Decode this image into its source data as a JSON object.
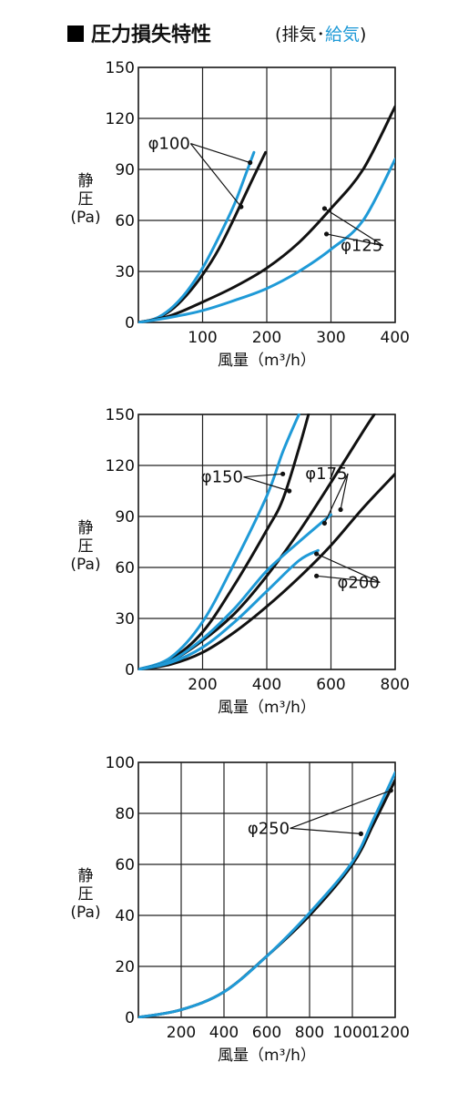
{
  "header": {
    "title": "圧力損失特性",
    "paren_open": "(",
    "exhaust": "排気",
    "separator": "･",
    "supply": "給気",
    "paren_close": ")"
  },
  "colors": {
    "exhaust": "#111111",
    "supply": "#1f9ad7",
    "grid": "#222222"
  },
  "chart_data": [
    {
      "type": "line",
      "xlabel": "風量（m³/h）",
      "ylabel": "静圧(Pa)",
      "xlim": [
        0,
        400
      ],
      "ylim": [
        0,
        150
      ],
      "xticks": [
        "100",
        "200",
        "300",
        "400"
      ],
      "yticks": [
        "0",
        "30",
        "60",
        "90",
        "120",
        "150"
      ],
      "series": [
        {
          "kind": "exhaust",
          "values": [
            [
              0,
              0
            ],
            [
              25,
              2
            ],
            [
              50,
              7
            ],
            [
              75,
              16
            ],
            [
              100,
              28
            ],
            [
              125,
              43
            ],
            [
              150,
              62
            ],
            [
              175,
              82
            ],
            [
              198,
              100
            ]
          ]
        },
        {
          "kind": "supply",
          "values": [
            [
              0,
              0
            ],
            [
              25,
              2
            ],
            [
              50,
              8
            ],
            [
              75,
              18
            ],
            [
              100,
              32
            ],
            [
              125,
              50
            ],
            [
              150,
              70
            ],
            [
              170,
              90
            ],
            [
              180,
              100
            ]
          ]
        },
        {
          "kind": "exhaust",
          "values": [
            [
              0,
              0
            ],
            [
              50,
              4
            ],
            [
              100,
              12
            ],
            [
              150,
              21
            ],
            [
              200,
              32
            ],
            [
              250,
              47
            ],
            [
              300,
              67
            ],
            [
              350,
              90
            ],
            [
              400,
              127
            ]
          ]
        },
        {
          "kind": "supply",
          "values": [
            [
              0,
              0
            ],
            [
              50,
              3
            ],
            [
              100,
              7
            ],
            [
              150,
              13
            ],
            [
              200,
              20
            ],
            [
              250,
              30
            ],
            [
              300,
              43
            ],
            [
              350,
              60
            ],
            [
              400,
              96
            ]
          ]
        }
      ],
      "annotations": [
        {
          "label": "φ100",
          "text_at": [
            15,
            102
          ],
          "targets": [
            [
              174,
              94
            ],
            [
              160,
              68
            ]
          ]
        },
        {
          "label": "φ125",
          "text_at": [
            315,
            42
          ],
          "targets": [
            [
              290,
              67
            ],
            [
              293,
              52
            ]
          ]
        }
      ]
    },
    {
      "type": "line",
      "xlabel": "風量（m³/h）",
      "ylabel": "静圧(Pa)",
      "xlim": [
        0,
        800
      ],
      "ylim": [
        0,
        150
      ],
      "xticks": [
        "200",
        "400",
        "600",
        "800"
      ],
      "yticks": [
        "0",
        "30",
        "60",
        "90",
        "120",
        "150"
      ],
      "series": [
        {
          "kind": "exhaust",
          "values": [
            [
              0,
              0
            ],
            [
              100,
              6
            ],
            [
              200,
              22
            ],
            [
              300,
              50
            ],
            [
              400,
              82
            ],
            [
              450,
              100
            ],
            [
              500,
              130
            ],
            [
              530,
              150
            ]
          ]
        },
        {
          "kind": "supply",
          "values": [
            [
              0,
              0
            ],
            [
              100,
              7
            ],
            [
              200,
              28
            ],
            [
              300,
              63
            ],
            [
              400,
              102
            ],
            [
              450,
              128
            ],
            [
              500,
              150
            ]
          ]
        },
        {
          "kind": "exhaust",
          "values": [
            [
              0,
              0
            ],
            [
              100,
              5
            ],
            [
              200,
              17
            ],
            [
              300,
              33
            ],
            [
              400,
              55
            ],
            [
              500,
              81
            ],
            [
              600,
              110
            ],
            [
              700,
              140
            ],
            [
              735,
              150
            ]
          ]
        },
        {
          "kind": "supply",
          "values": [
            [
              0,
              0
            ],
            [
              100,
              5
            ],
            [
              200,
              18
            ],
            [
              300,
              36
            ],
            [
              400,
              58
            ],
            [
              500,
              75
            ],
            [
              600,
              91
            ]
          ]
        },
        {
          "kind": "exhaust",
          "values": [
            [
              0,
              0
            ],
            [
              100,
              3
            ],
            [
              200,
              10
            ],
            [
              300,
              22
            ],
            [
              400,
              37
            ],
            [
              500,
              54
            ],
            [
              600,
              73
            ],
            [
              700,
              95
            ],
            [
              800,
              115
            ]
          ]
        },
        {
          "kind": "supply",
          "values": [
            [
              0,
              0
            ],
            [
              100,
              4
            ],
            [
              200,
              13
            ],
            [
              300,
              28
            ],
            [
              400,
              46
            ],
            [
              500,
              64
            ],
            [
              560,
              70
            ]
          ]
        }
      ],
      "annotations": [
        {
          "label": "φ150",
          "text_at": [
            195,
            110
          ],
          "targets": [
            [
              450,
              115
            ],
            [
              470,
              105
            ]
          ]
        },
        {
          "label": "φ175",
          "text_at": [
            520,
            112
          ],
          "targets": [
            [
              580,
              86
            ],
            [
              630,
              94
            ]
          ]
        },
        {
          "label": "φ200",
          "text_at": [
            620,
            48
          ],
          "targets": [
            [
              555,
              68
            ],
            [
              555,
              55
            ]
          ]
        }
      ]
    },
    {
      "type": "line",
      "xlabel": "風量（m³/h）",
      "ylabel": "静圧(Pa)",
      "xlim": [
        0,
        1200
      ],
      "ylim": [
        0,
        100
      ],
      "xticks": [
        "200",
        "400",
        "600",
        "800",
        "1000",
        "1200"
      ],
      "yticks": [
        "0",
        "20",
        "40",
        "60",
        "80",
        "100"
      ],
      "series": [
        {
          "kind": "exhaust",
          "values": [
            [
              0,
              0
            ],
            [
              200,
              3
            ],
            [
              400,
              10
            ],
            [
              600,
              24
            ],
            [
              800,
              40
            ],
            [
              1000,
              60
            ],
            [
              1100,
              76
            ],
            [
              1200,
              93
            ]
          ]
        },
        {
          "kind": "supply",
          "values": [
            [
              0,
              0
            ],
            [
              200,
              3
            ],
            [
              400,
              10
            ],
            [
              600,
              24
            ],
            [
              800,
              41
            ],
            [
              1000,
              61
            ],
            [
              1100,
              78
            ],
            [
              1200,
              96
            ]
          ]
        }
      ],
      "annotations": [
        {
          "label": "φ250",
          "text_at": [
            510,
            72
          ],
          "targets": [
            [
              1180,
              89
            ],
            [
              1040,
              72
            ]
          ]
        }
      ]
    }
  ]
}
